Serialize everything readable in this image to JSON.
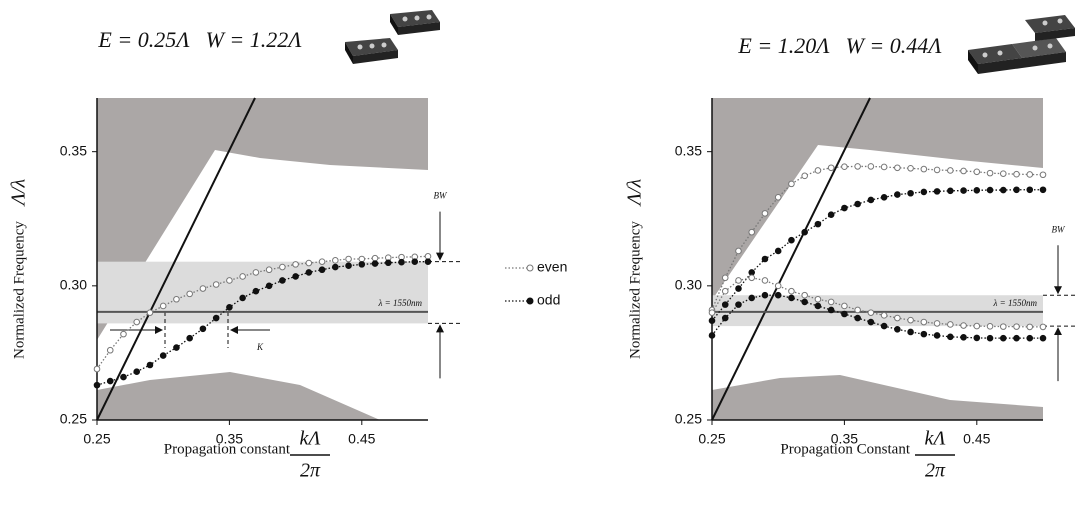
{
  "chart_data": [
    {
      "type": "line",
      "title": "E = 0.25Λ   W = 1.22Λ",
      "x_label": "Propagation constant",
      "x_label_fraction": [
        "kΛ",
        "2π"
      ],
      "y_label": "Normalized Frequency",
      "y_label_math": "Λ/λ",
      "xlim": [
        0.25,
        0.5
      ],
      "ylim": [
        0.25,
        0.37
      ],
      "xticks": [
        0.25,
        0.35,
        0.45
      ],
      "yticks": [
        0.25,
        {
          "value": 0.3,
          "label": "0.30"
        },
        0.35
      ],
      "band": [
        0.286,
        0.309
      ],
      "wavelength_line": {
        "value": 0.2903,
        "label": "λ = 1550nm"
      },
      "annotations": [
        "BW",
        "K"
      ],
      "x": [
        0.25,
        0.26,
        0.27,
        0.28,
        0.29,
        0.3,
        0.31,
        0.32,
        0.33,
        0.34,
        0.35,
        0.36,
        0.37,
        0.38,
        0.39,
        0.4,
        0.41,
        0.42,
        0.43,
        0.44,
        0.45,
        0.46,
        0.47,
        0.48,
        0.49,
        0.5
      ],
      "series": [
        {
          "name": "even",
          "color": "#777777",
          "marker": "open",
          "values": [
            0.269,
            0.276,
            0.282,
            0.2865,
            0.29,
            0.2925,
            0.295,
            0.297,
            0.299,
            0.3005,
            0.302,
            0.3035,
            0.305,
            0.306,
            0.307,
            0.308,
            0.3085,
            0.309,
            0.3095,
            0.31,
            0.31,
            0.3103,
            0.3105,
            0.3107,
            0.3108,
            0.311
          ]
        },
        {
          "name": "odd",
          "color": "#111111",
          "marker": "filled",
          "values": [
            0.263,
            0.2645,
            0.266,
            0.268,
            0.2705,
            0.274,
            0.277,
            0.2805,
            0.284,
            0.288,
            0.292,
            0.2955,
            0.298,
            0.3,
            0.302,
            0.3035,
            0.305,
            0.306,
            0.307,
            0.3075,
            0.308,
            0.3083,
            0.3086,
            0.3088,
            0.309,
            0.309
          ]
        }
      ]
    },
    {
      "type": "line",
      "title": "E = 1.20Λ   W = 0.44Λ",
      "x_label": "Propagation Constant",
      "x_label_fraction": [
        "kΛ",
        "2π"
      ],
      "y_label": "Normalized Frequency",
      "y_label_math": "Λ/λ",
      "xlim": [
        0.25,
        0.5
      ],
      "ylim": [
        0.25,
        0.37
      ],
      "xticks": [
        0.25,
        0.35,
        0.45
      ],
      "yticks": [
        0.25,
        {
          "value": 0.3,
          "label": "0.30"
        },
        0.35
      ],
      "band": [
        0.285,
        0.2965
      ],
      "wavelength_line": {
        "value": 0.2903,
        "label": "λ = 1550nm"
      },
      "annotations": [
        "BW"
      ],
      "x": [
        0.25,
        0.26,
        0.27,
        0.28,
        0.29,
        0.3,
        0.31,
        0.32,
        0.33,
        0.34,
        0.35,
        0.36,
        0.37,
        0.38,
        0.39,
        0.4,
        0.41,
        0.42,
        0.43,
        0.44,
        0.45,
        0.46,
        0.47,
        0.48,
        0.49,
        0.5
      ],
      "series": [
        {
          "name": "even",
          "color": "#777777",
          "marker": "open",
          "values": [
            0.291,
            0.303,
            0.313,
            0.32,
            0.327,
            0.333,
            0.338,
            0.341,
            0.343,
            0.344,
            0.3444,
            0.3445,
            0.3445,
            0.3443,
            0.344,
            0.3438,
            0.3435,
            0.3432,
            0.343,
            0.3428,
            0.3425,
            0.342,
            0.3418,
            0.3416,
            0.3415,
            0.3414
          ]
        },
        {
          "name": "odd",
          "color": "#111111",
          "marker": "filled",
          "values": [
            0.287,
            0.293,
            0.299,
            0.305,
            0.31,
            0.313,
            0.317,
            0.32,
            0.323,
            0.3265,
            0.329,
            0.3305,
            0.332,
            0.333,
            0.334,
            0.3345,
            0.335,
            0.3352,
            0.3354,
            0.3355,
            0.3356,
            0.3357,
            0.3357,
            0.3358,
            0.3358,
            0.3358
          ]
        },
        {
          "name": "even",
          "color": "#777777",
          "marker": "open",
          "values": [
            0.29,
            0.298,
            0.302,
            0.303,
            0.302,
            0.3,
            0.298,
            0.2965,
            0.295,
            0.294,
            0.2925,
            0.291,
            0.29,
            0.289,
            0.288,
            0.2872,
            0.2865,
            0.286,
            0.2856,
            0.2852,
            0.285,
            0.2849,
            0.2848,
            0.2848,
            0.2847,
            0.2847
          ]
        },
        {
          "name": "odd",
          "color": "#111111",
          "marker": "filled",
          "values": [
            0.2815,
            0.288,
            0.293,
            0.2955,
            0.2965,
            0.2965,
            0.2955,
            0.294,
            0.2925,
            0.291,
            0.2895,
            0.288,
            0.2865,
            0.285,
            0.2838,
            0.2828,
            0.282,
            0.2815,
            0.281,
            0.2808,
            0.2806,
            0.2805,
            0.2805,
            0.2805,
            0.2805,
            0.2805
          ]
        }
      ]
    }
  ]
}
